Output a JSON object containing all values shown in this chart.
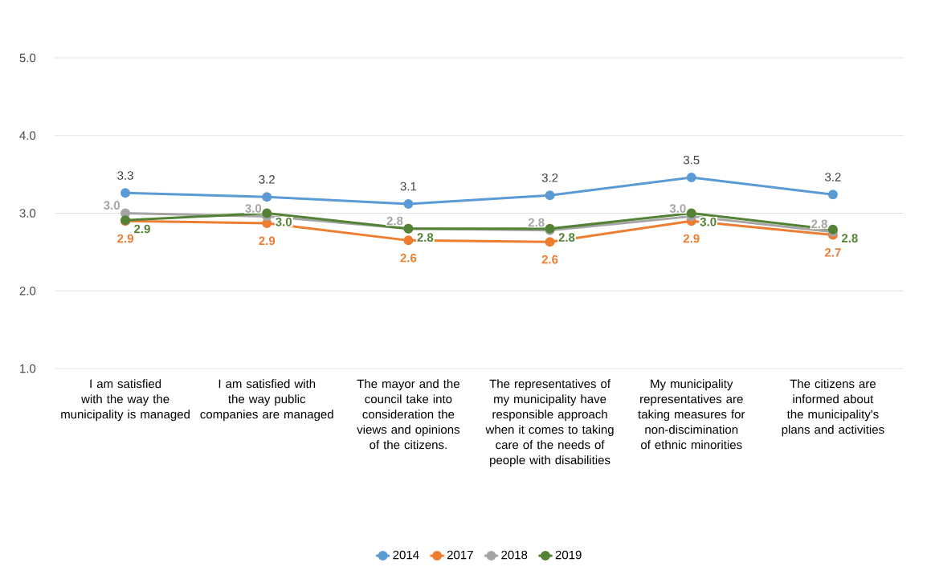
{
  "chart_data": {
    "type": "line",
    "categories": [
      "I am satisfied with the way the municipality is managed",
      "I am satisfied with the way public companies are managed",
      "The mayor and the council take into consideration the views and opinions of the citizens.",
      "The representatives of my municipality have responsible approach when it comes to taking care of the needs of people with disabilities",
      "My municipality representatives are taking measures for non-discimination of ethnic minorities",
      "The citizens are informed about the municipality's plans and activities"
    ],
    "series": [
      {
        "name": "2014",
        "color": "#5b9bd5",
        "values": [
          3.26,
          3.21,
          3.12,
          3.23,
          3.46,
          3.24
        ],
        "value_labels": [
          "3.3",
          "3.2",
          "3.1",
          "3.2",
          "3.5",
          "3.2"
        ]
      },
      {
        "name": "2017",
        "color": "#ed7d31",
        "values": [
          2.9,
          2.87,
          2.65,
          2.63,
          2.9,
          2.72
        ],
        "value_labels": [
          "2.9",
          "2.9",
          "2.6",
          "2.6",
          "2.9",
          "2.7"
        ]
      },
      {
        "name": "2018",
        "color": "#a5a5a5",
        "values": [
          3.0,
          2.96,
          2.8,
          2.78,
          2.96,
          2.76
        ],
        "value_labels": [
          "3.0",
          "3.0",
          "2.8",
          "2.8",
          "3.0",
          "2.8"
        ]
      },
      {
        "name": "2019",
        "color": "#548235",
        "values": [
          2.91,
          3.0,
          2.8,
          2.8,
          3.0,
          2.79
        ],
        "value_labels": [
          "2.9",
          "3.0",
          "2.8",
          "2.8",
          "3.0",
          "2.8"
        ]
      }
    ],
    "ylim": [
      1,
      5
    ],
    "yticks": [
      {
        "value": 1,
        "label": "1.0"
      },
      {
        "value": 2,
        "label": "2.0"
      },
      {
        "value": 3,
        "label": "3.0"
      },
      {
        "value": 4,
        "label": "4.0"
      },
      {
        "value": 5,
        "label": "5.0"
      }
    ],
    "grid": "y",
    "legend": "bottom",
    "marker": "circle",
    "line_style": "solid"
  }
}
